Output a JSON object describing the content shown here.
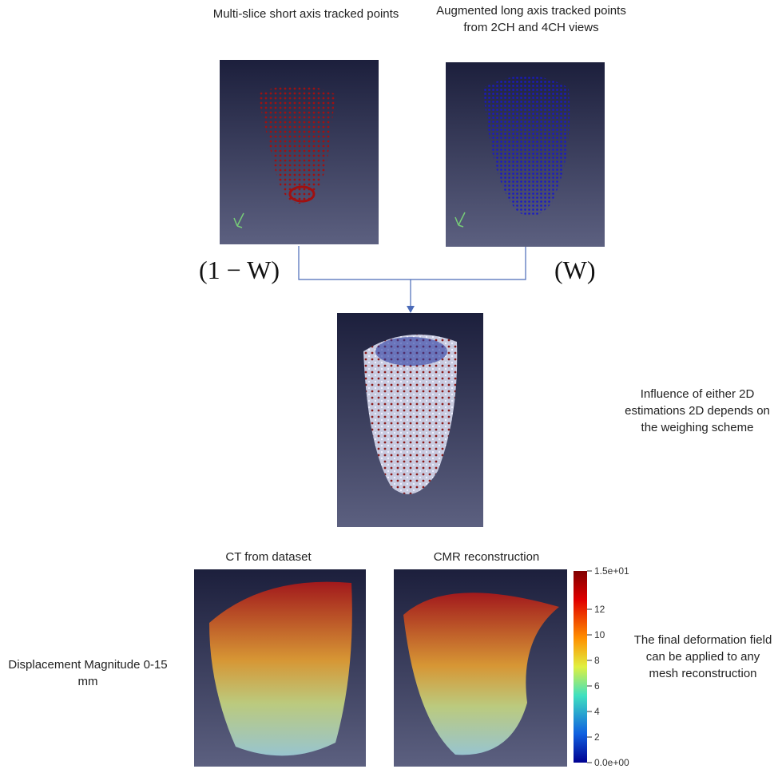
{
  "captions": {
    "short_axis": "Multi-slice short axis tracked points",
    "long_axis": "Augmented long axis tracked points from 2CH and 4CH views",
    "weight_left": "(1 − W)",
    "weight_right": "(W)",
    "influence": "Influence of  either 2D estimations 2D  depends on the weighing scheme",
    "ct": "CT from dataset",
    "cmr": "CMR reconstruction",
    "displacement": "Displacement Magnitude 0-15 mm",
    "final": "The final deformation field can be applied to any mesh reconstruction"
  },
  "colorbar": {
    "ticks": [
      "1.5e+01",
      "12",
      "10",
      "8",
      "6",
      "4",
      "2",
      "0.0e+00"
    ]
  }
}
